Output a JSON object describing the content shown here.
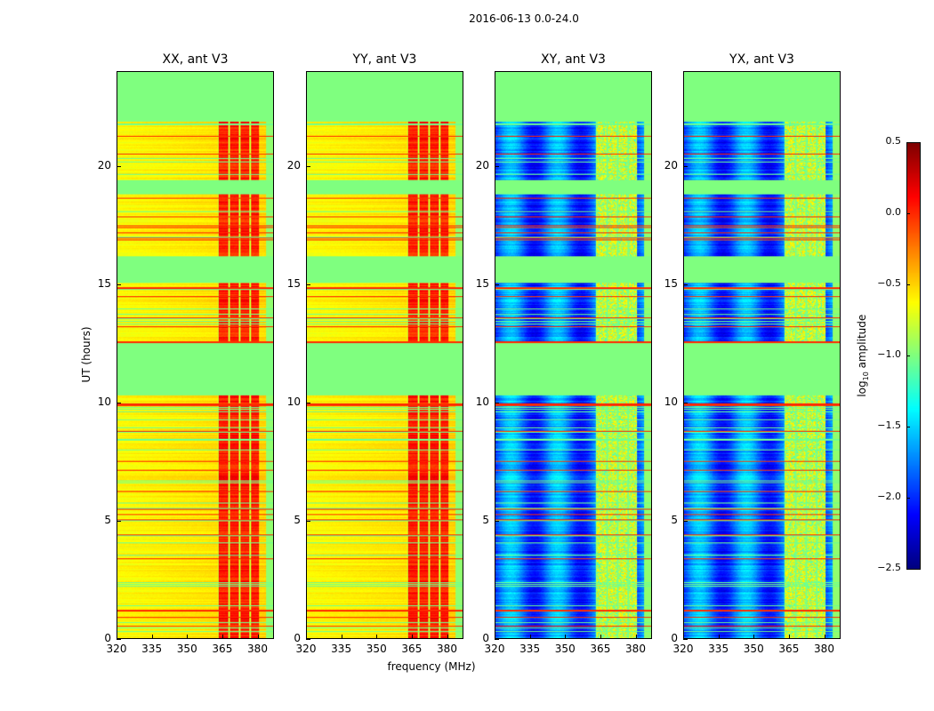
{
  "chart_data": {
    "type": "heatmap",
    "title": "2016-06-13 0.0-24.0",
    "xlabel": "frequency (MHz)",
    "ylabel": "UT (hours)",
    "xlim": [
      320,
      387
    ],
    "ylim": [
      0,
      24
    ],
    "xticks": [
      "320",
      "335",
      "350",
      "365",
      "380"
    ],
    "xtick_values": [
      320,
      335,
      350,
      365,
      380
    ],
    "yticks": [
      "0",
      "5",
      "10",
      "15",
      "20"
    ],
    "ytick_values": [
      0,
      5,
      10,
      15,
      20
    ],
    "panels": [
      {
        "title": "XX, ant V3",
        "kind": "parallel"
      },
      {
        "title": "YY, ant V3",
        "kind": "parallel"
      },
      {
        "title": "XY, ant V3",
        "kind": "cross"
      },
      {
        "title": "YX, ant V3",
        "kind": "cross"
      }
    ],
    "data_gaps_hours": [
      [
        21.9,
        24.0
      ],
      [
        18.8,
        19.4
      ],
      [
        15.05,
        16.2
      ],
      [
        10.3,
        12.5
      ]
    ],
    "rfi_band_mhz": [
      363,
      381
    ],
    "colorbar": {
      "label_prefix": "log",
      "label_sub": "10",
      "label_suffix": " amplitude",
      "range": [
        -2.5,
        0.5
      ],
      "ticks": [
        "0.5",
        "0.0",
        "−0.5",
        "−1.0",
        "−1.5",
        "−2.0",
        "−2.5"
      ],
      "tick_values": [
        0.5,
        0.0,
        -0.5,
        -1.0,
        -1.5,
        -2.0,
        -2.5
      ],
      "colormap": "jet"
    }
  }
}
